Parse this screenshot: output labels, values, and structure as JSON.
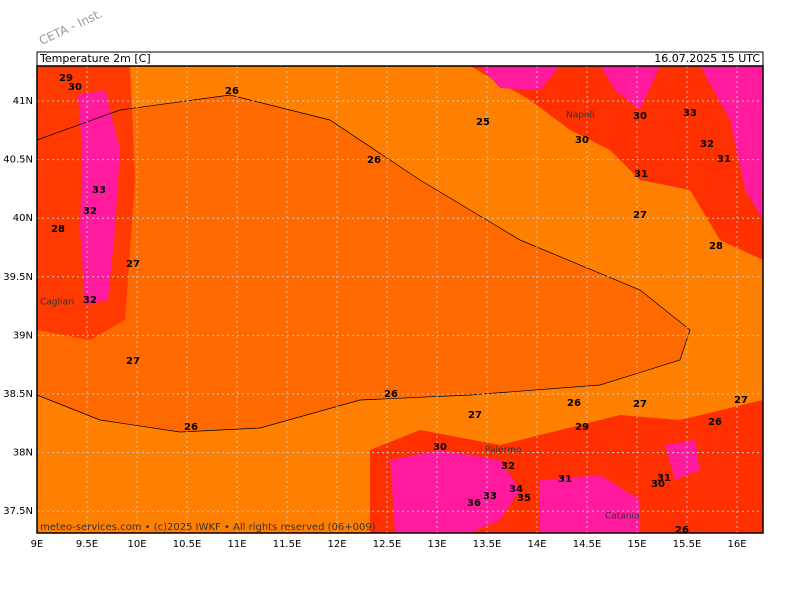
{
  "watermark": "CETA - Inst.",
  "header": {
    "title": "Temperature 2m [C]",
    "time": "16.07.2025 15 UTC"
  },
  "axes": {
    "lat": [
      "41N",
      "40.5N",
      "40N",
      "39.5N",
      "39N",
      "38.5N",
      "38N",
      "37.5N"
    ],
    "lon": [
      "9E",
      "9.5E",
      "10E",
      "10.5E",
      "11E",
      "11.5E",
      "12E",
      "12.5E",
      "13E",
      "13.5E",
      "14E",
      "14.5E",
      "15E",
      "15.5E",
      "16E"
    ]
  },
  "contour_labels": [
    "29",
    "30",
    "26",
    "25",
    "26",
    "33",
    "32",
    "28",
    "27",
    "27",
    "26",
    "26",
    "27",
    "30",
    "32",
    "31",
    "33",
    "36",
    "35",
    "34",
    "26",
    "27",
    "30",
    "33",
    "32",
    "31",
    "31",
    "27",
    "28",
    "27",
    "26",
    "29",
    "31",
    "30",
    "26",
    "32",
    "30"
  ],
  "places": [
    "Napoli",
    "Cagliari",
    "Palermo",
    "Catania"
  ],
  "footer": "meteo-services.com • (c)2025 IWKF • All rights reserved (06+009)"
}
